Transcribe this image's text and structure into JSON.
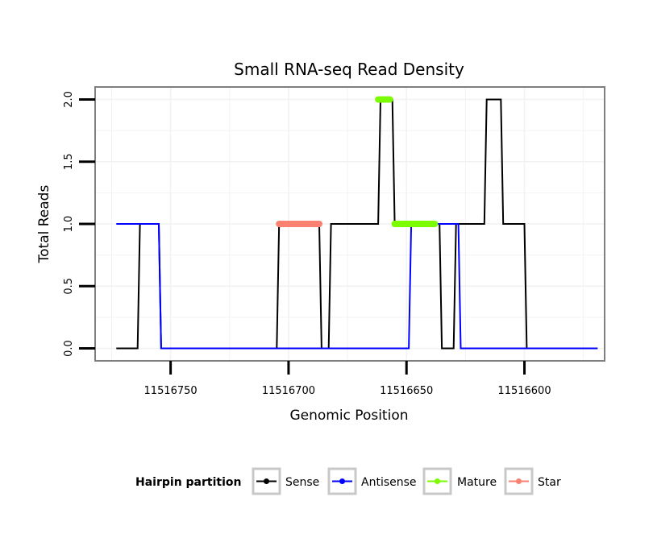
{
  "chart_data": {
    "type": "line",
    "title": "Small RNA-seq Read Density",
    "xlabel": "Genomic Position",
    "ylabel": "Total Reads",
    "x_reversed": true,
    "xlim": [
      11516782,
      11516566
    ],
    "ylim": [
      -0.1,
      2.1
    ],
    "x_ticks": [
      11516750,
      11516700,
      11516650,
      11516600
    ],
    "x_tick_labels": [
      "11516750",
      "11516700",
      "11516650",
      "11516600"
    ],
    "y_ticks": [
      0,
      0.5,
      1,
      1.5,
      2
    ],
    "y_tick_labels": [
      "0.0",
      "0.5",
      "1.0",
      "1.5",
      "2.0"
    ],
    "grid": true,
    "legend": {
      "title": "Hairpin partition",
      "position": "bottom",
      "entries": [
        "Sense",
        "Antisense",
        "Mature",
        "Star"
      ]
    },
    "colors": {
      "Sense": "#000000",
      "Antisense": "#0000ff",
      "Mature": "#7cfc00",
      "Star": "#fa8072",
      "panel_border": "#7f7f7f",
      "grid": "#f2f2f2"
    },
    "series": [
      {
        "name": "Sense",
        "x": [
          11516773,
          11516764,
          11516763,
          11516755,
          11516754,
          11516705,
          11516704,
          11516687,
          11516686,
          11516683,
          11516682,
          11516662,
          11516661,
          11516656,
          11516655,
          11516653,
          11516652,
          11516636,
          11516635,
          11516630,
          11516629,
          11516627,
          11516626,
          11516617,
          11516616,
          11516610,
          11516609,
          11516600,
          11516599,
          11516569
        ],
        "y": [
          0,
          0,
          1,
          1,
          0,
          0,
          1,
          1,
          0,
          0,
          1,
          1,
          2,
          2,
          1,
          1,
          1,
          1,
          0,
          0,
          1,
          1,
          1,
          1,
          2,
          2,
          1,
          1,
          0,
          0
        ]
      },
      {
        "name": "Antisense",
        "x": [
          11516773,
          11516755,
          11516754,
          11516649,
          11516648,
          11516628,
          11516627,
          11516569
        ],
        "y": [
          1,
          1,
          0,
          0,
          1,
          1,
          0,
          0
        ]
      },
      {
        "name": "Mature",
        "segments": [
          {
            "x": [
              11516662,
              11516657
            ],
            "y": [
              2,
              2
            ]
          },
          {
            "x": [
              11516655,
              11516638
            ],
            "y": [
              1,
              1
            ]
          }
        ]
      },
      {
        "name": "Star",
        "segments": [
          {
            "x": [
              11516704,
              11516687
            ],
            "y": [
              1,
              1
            ]
          }
        ]
      }
    ]
  }
}
